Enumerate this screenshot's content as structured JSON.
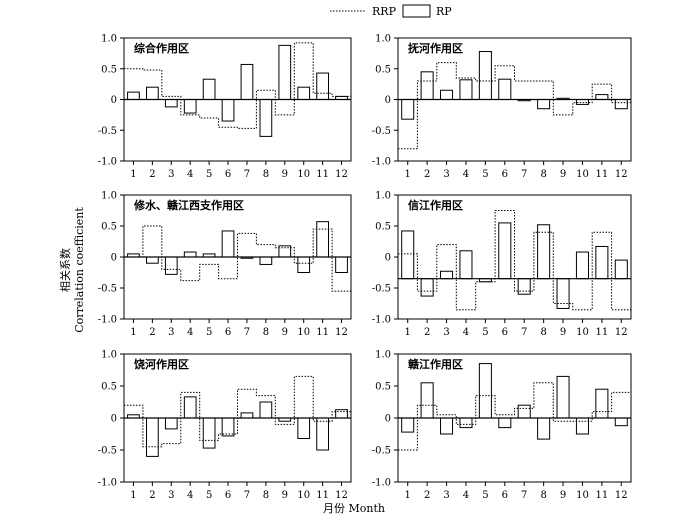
{
  "legend": {
    "rrp_label": "RRP",
    "rp_label": "RP"
  },
  "xlabel": "月份 Month",
  "ylabel_cn": "相关系数",
  "ylabel_en": "Correlation coefficient",
  "chart_data": [
    {
      "type": "bar+step",
      "title": "综合作用区",
      "baseline": 0,
      "ylim": [
        -1,
        1
      ],
      "yticks": [
        "1.0",
        "0.5",
        "0",
        "-0.5",
        "-1.0"
      ],
      "categories": [
        "1",
        "2",
        "3",
        "4",
        "5",
        "6",
        "7",
        "8",
        "9",
        "10",
        "11",
        "12"
      ],
      "series": [
        {
          "name": "RRP",
          "style": "dotted-step",
          "values": [
            0.5,
            0.48,
            0.05,
            -0.25,
            -0.3,
            -0.45,
            -0.47,
            0.15,
            -0.25,
            0.92,
            0.1,
            0.05
          ]
        },
        {
          "name": "RP",
          "style": "bar",
          "values": [
            0.12,
            0.2,
            -0.12,
            -0.22,
            0.33,
            -0.35,
            0.57,
            -0.6,
            0.88,
            0.2,
            0.43,
            0.05
          ]
        }
      ]
    },
    {
      "type": "bar+step",
      "title": "抚河作用区",
      "baseline": 0,
      "ylim": [
        -1,
        1
      ],
      "yticks": [
        "1.0",
        "0.5",
        "0",
        "-0.5",
        "-1.0"
      ],
      "categories": [
        "1",
        "2",
        "3",
        "4",
        "5",
        "6",
        "7",
        "8",
        "9",
        "10",
        "11",
        "12"
      ],
      "series": [
        {
          "name": "RRP",
          "style": "dotted-step",
          "values": [
            -0.8,
            0.3,
            0.6,
            0.35,
            0.3,
            0.55,
            0.3,
            0.3,
            -0.25,
            -0.05,
            0.25,
            -0.05
          ]
        },
        {
          "name": "RP",
          "style": "bar",
          "values": [
            -0.32,
            0.45,
            0.15,
            0.32,
            0.78,
            0.33,
            -0.02,
            -0.15,
            0.02,
            -0.08,
            0.08,
            -0.15
          ]
        }
      ]
    },
    {
      "type": "bar+step",
      "title": "修水、赣江西支作用区",
      "baseline": 0,
      "ylim": [
        -1,
        1
      ],
      "yticks": [
        "1.0",
        "0.5",
        "0",
        "-0.5",
        "-1.0"
      ],
      "categories": [
        "1",
        "2",
        "3",
        "4",
        "5",
        "6",
        "7",
        "8",
        "9",
        "10",
        "11",
        "12"
      ],
      "series": [
        {
          "name": "RRP",
          "style": "dotted-step",
          "values": [
            0.0,
            0.5,
            -0.2,
            -0.38,
            -0.12,
            -0.35,
            0.38,
            0.2,
            0.15,
            -0.1,
            0.45,
            -0.55
          ]
        },
        {
          "name": "RP",
          "style": "bar",
          "values": [
            0.05,
            -0.1,
            -0.28,
            0.08,
            0.05,
            0.42,
            -0.02,
            -0.12,
            0.18,
            -0.25,
            0.57,
            -0.25
          ]
        }
      ]
    },
    {
      "type": "bar+step",
      "title": "信江作用区",
      "baseline": -0.35,
      "ylim": [
        -1,
        1
      ],
      "yticks": [
        "1.0",
        "0.5",
        "0",
        "-0.5",
        "-1.0"
      ],
      "categories": [
        "1",
        "2",
        "3",
        "4",
        "5",
        "6",
        "7",
        "8",
        "9",
        "10",
        "11",
        "12"
      ],
      "series": [
        {
          "name": "RRP",
          "style": "dotted-step",
          "values": [
            0.05,
            -0.55,
            0.2,
            -0.85,
            -0.4,
            0.75,
            -0.55,
            0.4,
            -0.75,
            -0.85,
            0.4,
            -0.85
          ]
        },
        {
          "name": "RP",
          "style": "bar",
          "values": [
            0.42,
            -0.63,
            -0.23,
            0.1,
            -0.4,
            0.55,
            -0.6,
            0.52,
            -0.83,
            0.08,
            0.17,
            -0.05
          ]
        }
      ]
    },
    {
      "type": "bar+step",
      "title": "饶河作用区",
      "baseline": 0,
      "ylim": [
        -1,
        1
      ],
      "yticks": [
        "1.0",
        "0.5",
        "0",
        "-0.5",
        "-1.0"
      ],
      "categories": [
        "1",
        "2",
        "3",
        "4",
        "5",
        "6",
        "7",
        "8",
        "9",
        "10",
        "11",
        "12"
      ],
      "series": [
        {
          "name": "RRP",
          "style": "dotted-step",
          "values": [
            0.2,
            -0.45,
            -0.4,
            0.4,
            -0.35,
            -0.25,
            0.45,
            0.35,
            -0.1,
            0.65,
            -0.05,
            0.1
          ]
        },
        {
          "name": "RP",
          "style": "bar",
          "values": [
            0.05,
            -0.6,
            -0.17,
            0.33,
            -0.47,
            -0.28,
            0.08,
            0.25,
            -0.05,
            -0.32,
            -0.5,
            0.13
          ]
        }
      ]
    },
    {
      "type": "bar+step",
      "title": "赣江作用区",
      "baseline": 0,
      "ylim": [
        -1,
        1
      ],
      "yticks": [
        "1.0",
        "0.5",
        "0",
        "-0.5",
        "-1.0"
      ],
      "categories": [
        "1",
        "2",
        "3",
        "4",
        "5",
        "6",
        "7",
        "8",
        "9",
        "10",
        "11",
        "12"
      ],
      "series": [
        {
          "name": "RRP",
          "style": "dotted-step",
          "values": [
            -0.5,
            0.2,
            0.05,
            -0.1,
            0.35,
            0.05,
            0.15,
            0.55,
            -0.05,
            -0.05,
            0.1,
            0.4
          ]
        },
        {
          "name": "RP",
          "style": "bar",
          "values": [
            -0.22,
            0.55,
            -0.25,
            -0.15,
            0.85,
            -0.15,
            0.2,
            -0.33,
            0.65,
            -0.25,
            0.45,
            -0.12
          ]
        }
      ]
    }
  ]
}
